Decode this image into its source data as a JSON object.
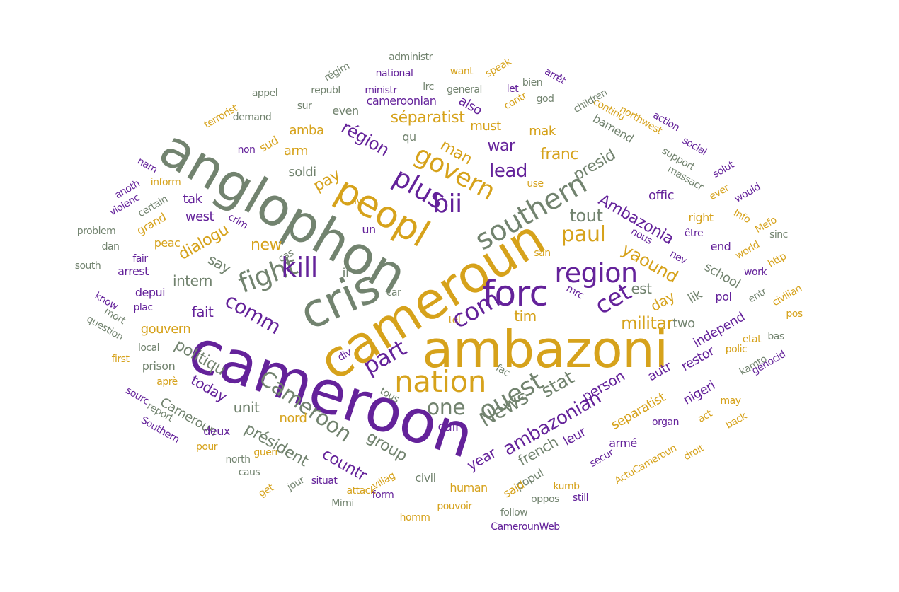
{
  "word_cloud": {
    "colors": {
      "gray": "#72836f",
      "gold": "#d6a21b",
      "purple": "#64229a"
    },
    "words": [
      {
        "id": "cameroon",
        "text": "cameroon",
        "color": "purple"
      },
      {
        "id": "cameroun",
        "text": "cameroun",
        "color": "gold"
      },
      {
        "id": "anglophon",
        "text": "anglophon",
        "color": "gray"
      },
      {
        "id": "ambazoni",
        "text": "ambazoni",
        "color": "gold"
      },
      {
        "id": "cris",
        "text": "cris",
        "color": "gray"
      },
      {
        "id": "peopl",
        "text": "peopl",
        "color": "gold"
      },
      {
        "id": "forc",
        "text": "forc",
        "color": "purple"
      },
      {
        "id": "southern",
        "text": "southern",
        "color": "gray"
      },
      {
        "id": "nation",
        "text": "nation",
        "color": "gold"
      },
      {
        "id": "region",
        "text": "region",
        "color": "purple"
      },
      {
        "id": "fight",
        "text": "fight",
        "color": "gray"
      },
      {
        "id": "plus",
        "text": "plus",
        "color": "purple"
      },
      {
        "id": "kill",
        "text": "kill",
        "color": "purple"
      },
      {
        "id": "govern",
        "text": "govern",
        "color": "gold"
      },
      {
        "id": "bii",
        "text": "bii",
        "color": "purple"
      },
      {
        "id": "ouest",
        "text": "ouest",
        "color": "gray"
      },
      {
        "id": "cet",
        "text": "cet",
        "color": "purple"
      },
      {
        "id": "com",
        "text": "com",
        "color": "purple"
      },
      {
        "id": "part",
        "text": "part",
        "color": "purple"
      },
      {
        "id": "paul",
        "text": "paul",
        "color": "gold"
      },
      {
        "id": "cameroon-cap",
        "text": "Cameroon",
        "color": "gray"
      },
      {
        "id": "one",
        "text": "one",
        "color": "gray"
      },
      {
        "id": "news",
        "text": "News",
        "color": "gray"
      },
      {
        "id": "stat",
        "text": "stat",
        "color": "gray"
      },
      {
        "id": "comm",
        "text": "comm",
        "color": "purple"
      },
      {
        "id": "tout",
        "text": "tout",
        "color": "gray"
      },
      {
        "id": "lead",
        "text": "lead",
        "color": "purple"
      },
      {
        "id": "militar",
        "text": "militar",
        "color": "gold"
      },
      {
        "id": "yaound",
        "text": "yaound",
        "color": "gold"
      },
      {
        "id": "ambazonia",
        "text": "Ambazonia",
        "color": "purple"
      },
      {
        "id": "ambazonian",
        "text": "ambazonian",
        "color": "purple"
      },
      {
        "id": "separatist-fr",
        "text": "séparatist",
        "color": "gold"
      },
      {
        "id": "region-fr",
        "text": "région",
        "color": "purple"
      },
      {
        "id": "man",
        "text": "man",
        "color": "gold"
      },
      {
        "id": "war",
        "text": "war",
        "color": "purple"
      },
      {
        "id": "franc",
        "text": "franc",
        "color": "gold"
      },
      {
        "id": "presid",
        "text": "presid",
        "color": "gray"
      },
      {
        "id": "new",
        "text": "new",
        "color": "gold"
      },
      {
        "id": "say",
        "text": "say",
        "color": "gray"
      },
      {
        "id": "dialogu",
        "text": "dialogu",
        "color": "gold"
      },
      {
        "id": "politiqu",
        "text": "politiqu",
        "color": "gray"
      },
      {
        "id": "fait",
        "text": "fait",
        "color": "purple"
      },
      {
        "id": "intern",
        "text": "intern",
        "color": "gray"
      },
      {
        "id": "pay",
        "text": "pay",
        "color": "gold"
      },
      {
        "id": "must",
        "text": "must",
        "color": "gold"
      },
      {
        "id": "mak",
        "text": "mak",
        "color": "gold"
      },
      {
        "id": "also",
        "text": "also",
        "color": "purple"
      },
      {
        "id": "even",
        "text": "even",
        "color": "gray"
      },
      {
        "id": "cameroonian",
        "text": "cameroonian",
        "color": "purple"
      },
      {
        "id": "qu",
        "text": "qu",
        "color": "gray"
      },
      {
        "id": "amba",
        "text": "amba",
        "color": "gold"
      },
      {
        "id": "arm",
        "text": "arm",
        "color": "gold"
      },
      {
        "id": "sud",
        "text": "sud",
        "color": "gold"
      },
      {
        "id": "soldi",
        "text": "soldi",
        "color": "gray"
      },
      {
        "id": "tak",
        "text": "tak",
        "color": "purple"
      },
      {
        "id": "west",
        "text": "west",
        "color": "purple"
      },
      {
        "id": "un",
        "text": "un",
        "color": "purple"
      },
      {
        "id": "il",
        "text": "il",
        "color": "gray"
      },
      {
        "id": "car",
        "text": "car",
        "color": "gray"
      },
      {
        "id": "tim",
        "text": "tim",
        "color": "gold"
      },
      {
        "id": "est",
        "text": "est",
        "color": "gray"
      },
      {
        "id": "day",
        "text": "day",
        "color": "gold"
      },
      {
        "id": "two",
        "text": "two",
        "color": "gray"
      },
      {
        "id": "lik",
        "text": "lik",
        "color": "gray"
      },
      {
        "id": "pol",
        "text": "pol",
        "color": "purple"
      },
      {
        "id": "school",
        "text": "school",
        "color": "gray"
      },
      {
        "id": "end",
        "text": "end",
        "color": "purple"
      },
      {
        "id": "offic",
        "text": "offic",
        "color": "purple"
      },
      {
        "id": "right",
        "text": "right",
        "color": "gold"
      },
      {
        "id": "bamend",
        "text": "bamend",
        "color": "gray"
      },
      {
        "id": "continu",
        "text": "continu",
        "color": "gold"
      },
      {
        "id": "contr",
        "text": "contr",
        "color": "gold"
      },
      {
        "id": "god",
        "text": "god",
        "color": "gray"
      },
      {
        "id": "general",
        "text": "general",
        "color": "gray"
      },
      {
        "id": "ministr",
        "text": "ministr",
        "color": "purple"
      },
      {
        "id": "republ",
        "text": "republ",
        "color": "gray"
      },
      {
        "id": "lrc",
        "text": "lrc",
        "color": "gray"
      },
      {
        "id": "national",
        "text": "national",
        "color": "purple"
      },
      {
        "id": "want",
        "text": "want",
        "color": "gold"
      },
      {
        "id": "speak",
        "text": "speak",
        "color": "gold"
      },
      {
        "id": "administr",
        "text": "administr",
        "color": "gray"
      },
      {
        "id": "regim",
        "text": "régim",
        "color": "gray"
      },
      {
        "id": "appel",
        "text": "appel",
        "color": "gray"
      },
      {
        "id": "sur",
        "text": "sur",
        "color": "gray"
      },
      {
        "id": "demand",
        "text": "demand",
        "color": "gray"
      },
      {
        "id": "terrorist",
        "text": "terrorist",
        "color": "gold"
      },
      {
        "id": "non",
        "text": "non",
        "color": "purple"
      },
      {
        "id": "let",
        "text": "let",
        "color": "purple"
      },
      {
        "id": "bien",
        "text": "bien",
        "color": "gray"
      },
      {
        "id": "arret",
        "text": "arrêt",
        "color": "purple"
      },
      {
        "id": "children",
        "text": "children",
        "color": "gray"
      },
      {
        "id": "northwest",
        "text": "northwest",
        "color": "gold"
      },
      {
        "id": "action",
        "text": "action",
        "color": "purple"
      },
      {
        "id": "social",
        "text": "social",
        "color": "purple"
      },
      {
        "id": "support",
        "text": "support",
        "color": "gray"
      },
      {
        "id": "massacr",
        "text": "massacr",
        "color": "gray"
      },
      {
        "id": "solut",
        "text": "solut",
        "color": "purple"
      },
      {
        "id": "ever",
        "text": "ever",
        "color": "gold"
      },
      {
        "id": "would",
        "text": "would",
        "color": "purple"
      },
      {
        "id": "info",
        "text": "Info",
        "color": "gold"
      },
      {
        "id": "mefo",
        "text": "Mefo",
        "color": "gold"
      },
      {
        "id": "sinc",
        "text": "sinc",
        "color": "gray"
      },
      {
        "id": "etre",
        "text": "être",
        "color": "purple"
      },
      {
        "id": "nous",
        "text": "nous",
        "color": "purple"
      },
      {
        "id": "nev",
        "text": "nev",
        "color": "purple"
      },
      {
        "id": "world",
        "text": "world",
        "color": "gold"
      },
      {
        "id": "http",
        "text": "http",
        "color": "gold"
      },
      {
        "id": "work",
        "text": "work",
        "color": "purple"
      },
      {
        "id": "entr",
        "text": "entr",
        "color": "gray"
      },
      {
        "id": "civilian",
        "text": "civilian",
        "color": "gold"
      },
      {
        "id": "pos",
        "text": "pos",
        "color": "gold"
      },
      {
        "id": "etat",
        "text": "etat",
        "color": "gold"
      },
      {
        "id": "polic",
        "text": "polic",
        "color": "gold"
      },
      {
        "id": "independ",
        "text": "independ",
        "color": "purple"
      },
      {
        "id": "bas",
        "text": "bas",
        "color": "gray"
      },
      {
        "id": "kamto",
        "text": "kamto",
        "color": "gray"
      },
      {
        "id": "genocid",
        "text": "genocid",
        "color": "purple"
      },
      {
        "id": "restor",
        "text": "restor",
        "color": "purple"
      },
      {
        "id": "nigeri",
        "text": "nigeri",
        "color": "purple"
      },
      {
        "id": "act",
        "text": "act",
        "color": "gold"
      },
      {
        "id": "may",
        "text": "may",
        "color": "gold"
      },
      {
        "id": "back",
        "text": "back",
        "color": "gold"
      },
      {
        "id": "droit",
        "text": "droit",
        "color": "gold"
      },
      {
        "id": "autr",
        "text": "autr",
        "color": "purple"
      },
      {
        "id": "person",
        "text": "person",
        "color": "purple"
      },
      {
        "id": "separatist",
        "text": "separatist",
        "color": "gold"
      },
      {
        "id": "organ",
        "text": "organ",
        "color": "purple"
      },
      {
        "id": "leur",
        "text": "leur",
        "color": "purple"
      },
      {
        "id": "arme",
        "text": "armé",
        "color": "purple"
      },
      {
        "id": "secur",
        "text": "secur",
        "color": "purple"
      },
      {
        "id": "actucameroun",
        "text": "ActuCameroun",
        "color": "gold"
      },
      {
        "id": "french",
        "text": "french",
        "color": "gray"
      },
      {
        "id": "popul",
        "text": "popul",
        "color": "gray"
      },
      {
        "id": "kumb",
        "text": "kumb",
        "color": "gold"
      },
      {
        "id": "still",
        "text": "still",
        "color": "purple"
      },
      {
        "id": "oppos",
        "text": "oppos",
        "color": "gray"
      },
      {
        "id": "follow",
        "text": "follow",
        "color": "gray"
      },
      {
        "id": "camerounweb",
        "text": "CamerounWeb",
        "color": "purple"
      },
      {
        "id": "year",
        "text": "year",
        "color": "purple"
      },
      {
        "id": "said",
        "text": "said",
        "color": "gold"
      },
      {
        "id": "human",
        "text": "human",
        "color": "gold"
      },
      {
        "id": "pouvoir",
        "text": "pouvoir",
        "color": "gold"
      },
      {
        "id": "call",
        "text": "call",
        "color": "purple"
      },
      {
        "id": "group",
        "text": "group",
        "color": "gray"
      },
      {
        "id": "countr",
        "text": "countr",
        "color": "purple"
      },
      {
        "id": "civil",
        "text": "civil",
        "color": "gray"
      },
      {
        "id": "form",
        "text": "form",
        "color": "purple"
      },
      {
        "id": "villag",
        "text": "villag",
        "color": "gold"
      },
      {
        "id": "attack",
        "text": "attack",
        "color": "gold"
      },
      {
        "id": "homm",
        "text": "homm",
        "color": "gold"
      },
      {
        "id": "mimi",
        "text": "Mimi",
        "color": "gray"
      },
      {
        "id": "situat",
        "text": "situat",
        "color": "purple"
      },
      {
        "id": "get",
        "text": "get",
        "color": "gold"
      },
      {
        "id": "jour",
        "text": "jour",
        "color": "gray"
      },
      {
        "id": "guerr",
        "text": "guerr",
        "color": "gold"
      },
      {
        "id": "president",
        "text": "président",
        "color": "gray"
      },
      {
        "id": "caus",
        "text": "caus",
        "color": "gray"
      },
      {
        "id": "north",
        "text": "north",
        "color": "gray"
      },
      {
        "id": "nord",
        "text": "nord",
        "color": "gold"
      },
      {
        "id": "unit",
        "text": "unit",
        "color": "gray"
      },
      {
        "id": "today",
        "text": "today",
        "color": "purple"
      },
      {
        "id": "camerounp",
        "text": "Cameroun",
        "color": "gray"
      },
      {
        "id": "deux",
        "text": "deux",
        "color": "purple"
      },
      {
        "id": "pour",
        "text": "pour",
        "color": "gold"
      },
      {
        "id": "southern-cap",
        "text": "Southern",
        "color": "purple"
      },
      {
        "id": "report",
        "text": "report",
        "color": "gray"
      },
      {
        "id": "sourc",
        "text": "sourc",
        "color": "purple"
      },
      {
        "id": "apre",
        "text": "aprè",
        "color": "gold"
      },
      {
        "id": "prison",
        "text": "prison",
        "color": "gray"
      },
      {
        "id": "local",
        "text": "local",
        "color": "gray"
      },
      {
        "id": "gouvern",
        "text": "gouvern",
        "color": "gold"
      },
      {
        "id": "plac",
        "text": "plac",
        "color": "purple"
      },
      {
        "id": "depui",
        "text": "depui",
        "color": "purple"
      },
      {
        "id": "arrest",
        "text": "arrest",
        "color": "purple"
      },
      {
        "id": "peac",
        "text": "peac",
        "color": "gold"
      },
      {
        "id": "fair",
        "text": "fair",
        "color": "purple"
      },
      {
        "id": "grand",
        "text": "grand",
        "color": "gold"
      },
      {
        "id": "inform",
        "text": "inform",
        "color": "gold"
      },
      {
        "id": "certain",
        "text": "certain",
        "color": "gray"
      },
      {
        "id": "crim",
        "text": "crim",
        "color": "purple"
      },
      {
        "id": "cas",
        "text": "cas",
        "color": "gray"
      },
      {
        "id": "liv",
        "text": "liv",
        "color": "gold"
      },
      {
        "id": "use",
        "text": "use",
        "color": "gold"
      },
      {
        "id": "nam",
        "text": "nam",
        "color": "purple"
      },
      {
        "id": "anoth",
        "text": "anoth",
        "color": "purple"
      },
      {
        "id": "violenc",
        "text": "violenc",
        "color": "purple"
      },
      {
        "id": "problem",
        "text": "problem",
        "color": "gray"
      },
      {
        "id": "dan",
        "text": "dan",
        "color": "gray"
      },
      {
        "id": "south",
        "text": "south",
        "color": "gray"
      },
      {
        "id": "know",
        "text": "know",
        "color": "purple"
      },
      {
        "id": "mort",
        "text": "mort",
        "color": "gray"
      },
      {
        "id": "question",
        "text": "question",
        "color": "gray"
      },
      {
        "id": "first",
        "text": "first",
        "color": "gold"
      },
      {
        "id": "san",
        "text": "san",
        "color": "gold"
      },
      {
        "id": "mrc",
        "text": "mrc",
        "color": "purple"
      },
      {
        "id": "tel",
        "text": "tel",
        "color": "gold"
      },
      {
        "id": "div",
        "text": "div",
        "color": "purple"
      },
      {
        "id": "fac",
        "text": "fac",
        "color": "gray"
      },
      {
        "id": "tous",
        "text": "tous",
        "color": "gray"
      }
    ]
  }
}
